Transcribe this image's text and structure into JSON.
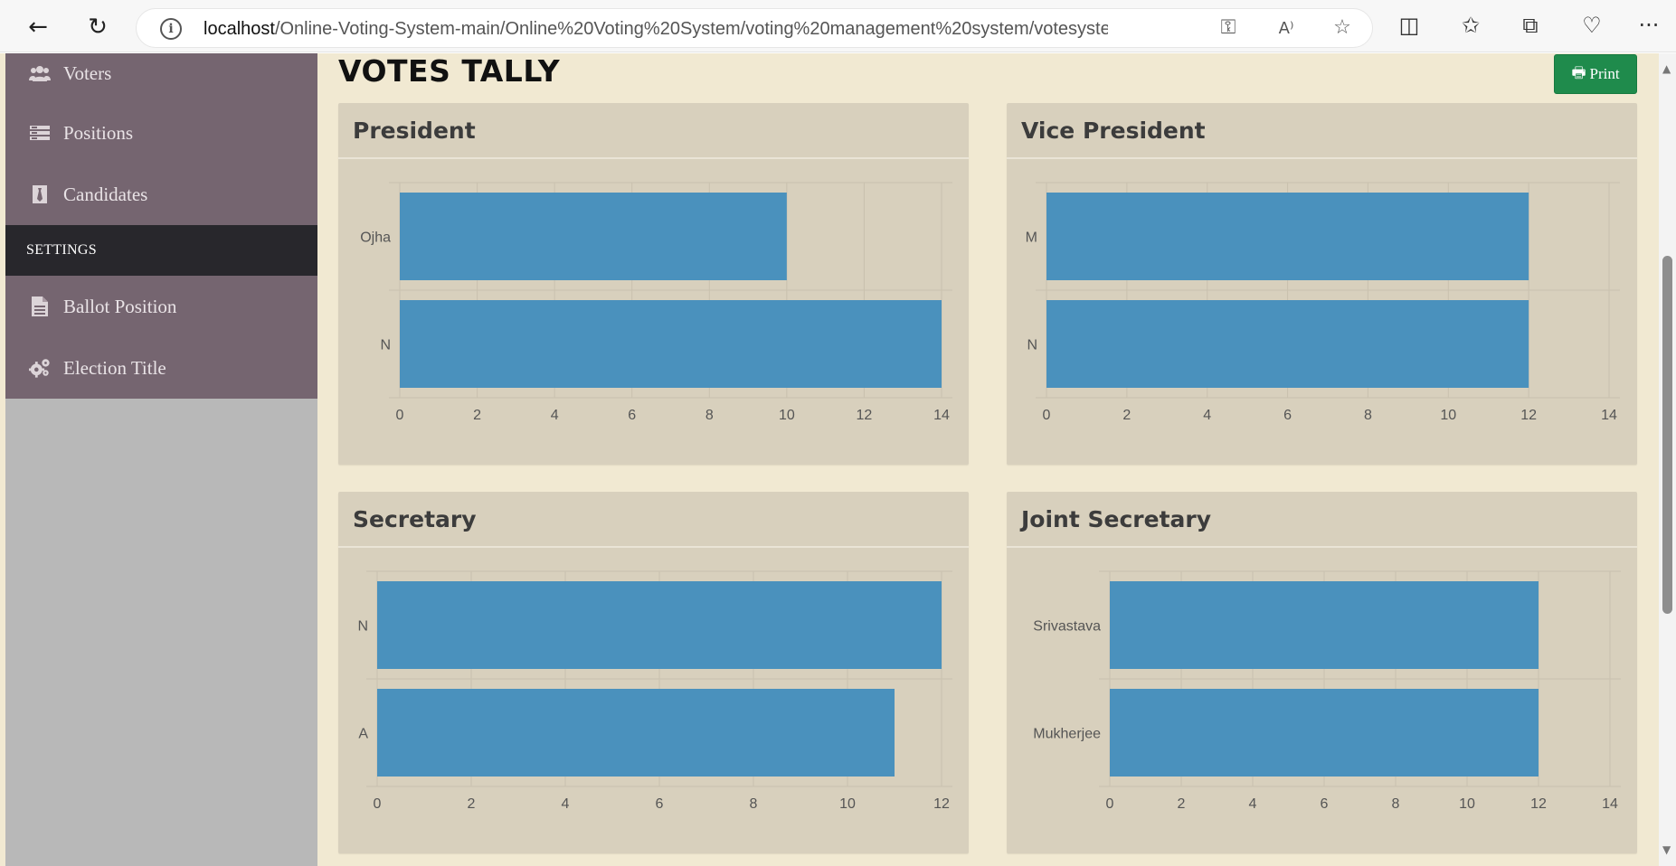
{
  "browser": {
    "url_host": "localhost",
    "url_path": "/Online-Voting-System-main/Online%20Voting%20System/voting%20management%20system/votesystem/..."
  },
  "sidebar": {
    "items": [
      {
        "label": "Voters",
        "icon": "users-icon"
      },
      {
        "label": "Positions",
        "icon": "list-icon"
      },
      {
        "label": "Candidates",
        "icon": "candidate-icon"
      }
    ],
    "header": "SETTINGS",
    "settings_items": [
      {
        "label": "Ballot Position",
        "icon": "file-icon"
      },
      {
        "label": "Election Title",
        "icon": "cogs-icon"
      }
    ]
  },
  "content": {
    "title": "VOTES TALLY",
    "print_label": "Print"
  },
  "colors": {
    "bar": "#4a91bd",
    "panel": "#d8d0bd",
    "grid": "#c9c1ae",
    "sidebar": "#756570",
    "header": "#28272c",
    "print": "#1f8b4c"
  },
  "chart_data": [
    {
      "type": "bar",
      "orientation": "horizontal",
      "title": "President",
      "categories": [
        "Ojha",
        "N"
      ],
      "values": [
        10,
        14
      ],
      "xlim": [
        0,
        14
      ],
      "ticks": [
        0,
        2,
        4,
        6,
        8,
        10,
        12,
        14
      ],
      "grid": true
    },
    {
      "type": "bar",
      "orientation": "horizontal",
      "title": "Vice President",
      "categories": [
        "M",
        "N"
      ],
      "values": [
        12,
        12
      ],
      "xlim": [
        0,
        14
      ],
      "ticks": [
        0,
        2,
        4,
        6,
        8,
        10,
        12,
        14
      ],
      "grid": true
    },
    {
      "type": "bar",
      "orientation": "horizontal",
      "title": "Secretary",
      "categories": [
        "N",
        "A"
      ],
      "values": [
        12,
        11
      ],
      "xlim": [
        0,
        12
      ],
      "ticks": [
        0,
        2,
        4,
        6,
        8,
        10,
        12
      ],
      "grid": true
    },
    {
      "type": "bar",
      "orientation": "horizontal",
      "title": "Joint Secretary",
      "categories": [
        "Srivastava",
        "Mukherjee"
      ],
      "values": [
        12,
        12
      ],
      "xlim": [
        0,
        14
      ],
      "ticks": [
        0,
        2,
        4,
        6,
        8,
        10,
        12,
        14
      ],
      "grid": true
    }
  ]
}
